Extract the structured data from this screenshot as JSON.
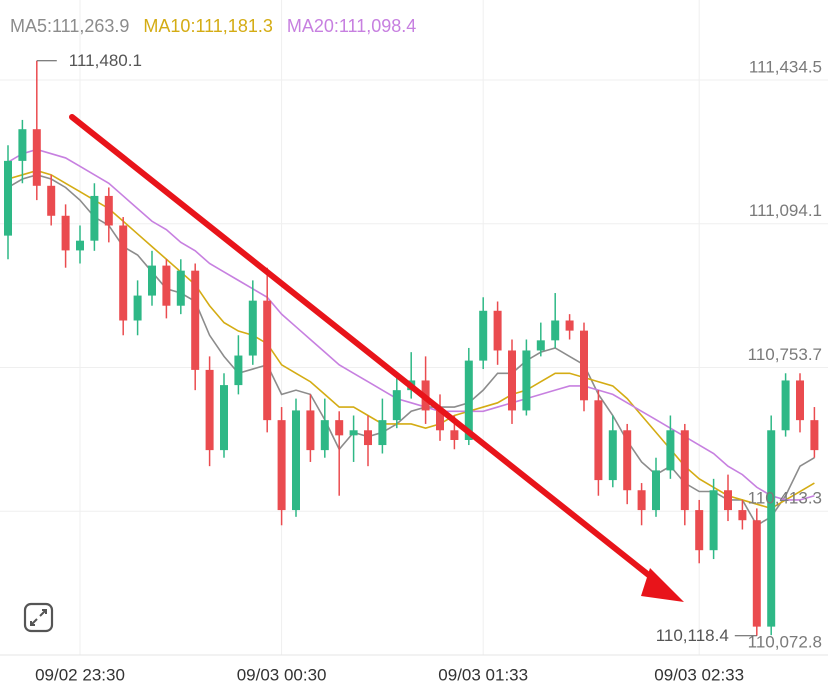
{
  "chart_data": {
    "type": "candlestick",
    "series": [
      {
        "name": "MA5:111,263.9",
        "color": "#8c8c8c",
        "values": [
          111180,
          111200,
          111210,
          111200,
          111180,
          111150,
          111110,
          111090,
          111040,
          111020,
          110980,
          110940,
          110930,
          110910,
          110830,
          110780,
          110740,
          110750,
          110760,
          110690,
          110700,
          110690,
          110630,
          110560,
          110600,
          110590,
          110600,
          110620,
          110650,
          110660,
          110660,
          110660,
          110670,
          110700,
          110740,
          110740,
          110770,
          110790,
          110800,
          110780,
          110760,
          110690,
          110640,
          110580,
          110530,
          110500,
          110520,
          110480,
          110460,
          110460,
          110440,
          110440,
          110380,
          110400,
          110450,
          110520,
          110540
        ]
      },
      {
        "name": "MA10:111,181.3",
        "color": "#d4ac14",
        "values": [
          111200,
          111210,
          111220,
          111210,
          111190,
          111170,
          111150,
          111130,
          111100,
          111070,
          111040,
          111010,
          110980,
          110950,
          110900,
          110860,
          110840,
          110830,
          110810,
          110760,
          110740,
          110720,
          110690,
          110660,
          110660,
          110640,
          110620,
          110620,
          110620,
          110610,
          110620,
          110640,
          110650,
          110660,
          110670,
          110690,
          110700,
          110720,
          110740,
          110740,
          110730,
          110720,
          110710,
          110680,
          110640,
          110600,
          110560,
          110520,
          110490,
          110470,
          110450,
          110440,
          110430,
          110420,
          110440,
          110460,
          110480
        ]
      },
      {
        "name": "MA20:111,098.4",
        "color": "#c780e0",
        "values": [
          111240,
          111260,
          111270,
          111260,
          111250,
          111230,
          111210,
          111190,
          111160,
          111130,
          111100,
          111080,
          111050,
          111030,
          111000,
          110980,
          110960,
          110940,
          110920,
          110880,
          110850,
          110820,
          110790,
          110760,
          110740,
          110720,
          110700,
          110680,
          110670,
          110660,
          110650,
          110650,
          110650,
          110650,
          110660,
          110670,
          110680,
          110690,
          110700,
          110710,
          110710,
          110700,
          110690,
          110670,
          110650,
          110630,
          110610,
          110590,
          110570,
          110550,
          110520,
          110500,
          110470,
          110450,
          110440,
          110440,
          110450
        ]
      }
    ],
    "open": [
      111066,
      111243,
      111318,
      111184,
      111113,
      111031,
      111054,
      111160,
      111090,
      110865,
      110924,
      110995,
      110900,
      110983,
      110748,
      110558,
      110712,
      110782,
      110912,
      110629,
      110416,
      110652,
      110558,
      110629,
      110593,
      110605,
      110570,
      110629,
      110700,
      110723,
      110652,
      110605,
      110582,
      110770,
      110888,
      110794,
      110652,
      110794,
      110818,
      110865,
      110841,
      110676,
      110487,
      110605,
      110463,
      110416,
      110510,
      110605,
      110416,
      110321,
      110463,
      110416,
      110392,
      110140,
      110605,
      110723,
      110629
    ],
    "high": [
      111280,
      111340,
      111480.1,
      111210,
      111140,
      111090,
      111190,
      111180,
      111110,
      110960,
      111030,
      111010,
      111010,
      111000,
      110780,
      110740,
      110830,
      110960,
      110990,
      110660,
      110680,
      110690,
      110680,
      110650,
      110640,
      110640,
      110680,
      110740,
      110790,
      110780,
      110690,
      110640,
      110800,
      110920,
      110910,
      110820,
      110820,
      110860,
      110930,
      110880,
      110860,
      110700,
      110640,
      110620,
      110480,
      110540,
      110640,
      110620,
      110440,
      110490,
      110500,
      110440,
      110420,
      110640,
      110740,
      110740,
      110660
    ],
    "low": [
      111010,
      111190,
      111150,
      111090,
      110990,
      111000,
      111030,
      111050,
      110830,
      110830,
      110900,
      110870,
      110880,
      110700,
      110520,
      110540,
      110690,
      110760,
      110600,
      110380,
      110400,
      110530,
      110540,
      110450,
      110530,
      110520,
      110550,
      110610,
      110680,
      110620,
      110580,
      110560,
      110570,
      110750,
      110760,
      110620,
      110640,
      110780,
      110800,
      110820,
      110650,
      110450,
      110470,
      110430,
      110380,
      110400,
      110490,
      110380,
      110290,
      110300,
      110390,
      110370,
      110118.4,
      110120,
      110590,
      110600,
      110540
    ],
    "close": [
      111243,
      111318,
      111184,
      111113,
      111031,
      111054,
      111160,
      111090,
      110865,
      110924,
      110995,
      110900,
      110983,
      110748,
      110558,
      110712,
      110782,
      110912,
      110629,
      110416,
      110652,
      110558,
      110629,
      110593,
      110605,
      110570,
      110629,
      110700,
      110723,
      110652,
      110605,
      110582,
      110770,
      110888,
      110794,
      110652,
      110794,
      110818,
      110865,
      110841,
      110676,
      110487,
      110605,
      110463,
      110416,
      110510,
      110605,
      110416,
      110321,
      110463,
      110416,
      110392,
      110140,
      110605,
      110723,
      110629,
      110558
    ],
    "up_color": "#2eb886",
    "down_color": "#ea4b4f",
    "high_label": "111,480.1",
    "low_label": "110,118.4",
    "ylim": [
      110072.8,
      111624
    ],
    "yticks": [
      {
        "value": 111434.5,
        "label": "111,434.5"
      },
      {
        "value": 111094.1,
        "label": "111,094.1"
      },
      {
        "value": 110753.7,
        "label": "110,753.7"
      },
      {
        "value": 110413.3,
        "label": "110,413.3"
      },
      {
        "value": 110072.8,
        "label": "110,072.8"
      }
    ],
    "xticks": [
      {
        "value": 5,
        "label": "09/02 23:30"
      },
      {
        "value": 19,
        "label": "09/03 00:30"
      },
      {
        "value": 33,
        "label": "09/03 01:33"
      },
      {
        "value": 48,
        "label": "09/03 02:33"
      }
    ],
    "grid": true
  }
}
